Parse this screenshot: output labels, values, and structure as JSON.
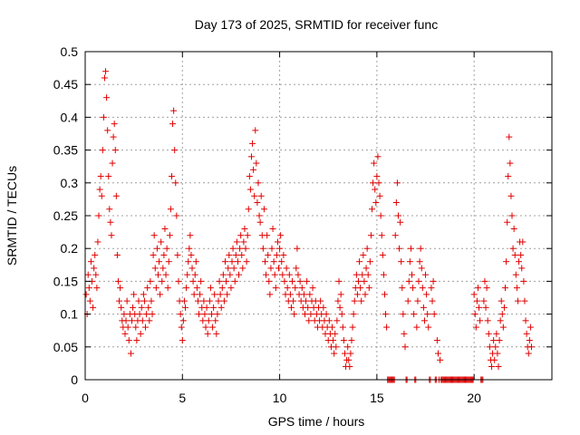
{
  "chart_data": {
    "type": "scatter",
    "title": "Day 173 of 2025, SRMTID for receiver func",
    "xlabel": "GPS time / hours",
    "ylabel": "SRMTID / TECUs",
    "xlim": [
      0,
      24
    ],
    "ylim": [
      0,
      0.5
    ],
    "xticks": [
      0,
      5,
      10,
      15,
      20
    ],
    "yticks": [
      0,
      0.05,
      0.1,
      0.15,
      0.2,
      0.25,
      0.3,
      0.35,
      0.4,
      0.45,
      0.5
    ],
    "xtick_labels": [
      "0",
      "5",
      "10",
      "15",
      "20"
    ],
    "ytick_labels": [
      "0",
      "0.05",
      "0.1",
      "0.15",
      "0.2",
      "0.25",
      "0.3",
      "0.35",
      "0.4",
      "0.45",
      "0.5"
    ],
    "grid": true,
    "marker": "+",
    "color": "#e00000",
    "x": [
      0.05,
      0.1,
      0.15,
      0.2,
      0.25,
      0.3,
      0.35,
      0.4,
      0.45,
      0.5,
      0.55,
      0.6,
      0.65,
      0.7,
      0.75,
      0.8,
      0.85,
      0.9,
      0.95,
      1.0,
      1.05,
      1.1,
      1.15,
      1.2,
      1.25,
      1.3,
      1.35,
      1.4,
      1.45,
      1.5,
      1.55,
      1.6,
      1.65,
      1.7,
      1.75,
      1.8,
      1.85,
      1.9,
      1.95,
      2.0,
      2.05,
      2.1,
      2.15,
      2.2,
      2.25,
      2.3,
      2.35,
      2.4,
      2.45,
      2.5,
      2.55,
      2.6,
      2.65,
      2.7,
      2.75,
      2.8,
      2.85,
      2.9,
      2.95,
      3.0,
      3.05,
      3.1,
      3.15,
      3.2,
      3.25,
      3.3,
      3.35,
      3.4,
      3.45,
      3.5,
      3.55,
      3.6,
      3.65,
      3.7,
      3.75,
      3.8,
      3.85,
      3.9,
      3.95,
      4.0,
      4.05,
      4.1,
      4.15,
      4.2,
      4.25,
      4.3,
      4.35,
      4.4,
      4.45,
      4.5,
      4.55,
      4.6,
      4.65,
      4.7,
      4.75,
      4.8,
      4.85,
      4.9,
      4.95,
      5.0,
      5.05,
      5.1,
      5.15,
      5.2,
      5.25,
      5.3,
      5.35,
      5.4,
      5.45,
      5.5,
      5.55,
      5.6,
      5.65,
      5.7,
      5.75,
      5.8,
      5.85,
      5.9,
      5.95,
      6.0,
      6.05,
      6.1,
      6.15,
      6.2,
      6.25,
      6.3,
      6.35,
      6.4,
      6.45,
      6.5,
      6.55,
      6.6,
      6.65,
      6.7,
      6.75,
      6.8,
      6.85,
      6.9,
      6.95,
      7.0,
      7.05,
      7.1,
      7.15,
      7.2,
      7.25,
      7.3,
      7.35,
      7.4,
      7.45,
      7.5,
      7.55,
      7.6,
      7.65,
      7.7,
      7.75,
      7.8,
      7.85,
      7.9,
      7.95,
      8.0,
      8.05,
      8.1,
      8.15,
      8.2,
      8.25,
      8.3,
      8.35,
      8.4,
      8.45,
      8.5,
      8.55,
      8.6,
      8.65,
      8.7,
      8.75,
      8.8,
      8.85,
      8.9,
      8.95,
      9.0,
      9.05,
      9.1,
      9.15,
      9.2,
      9.25,
      9.3,
      9.35,
      9.4,
      9.45,
      9.5,
      9.55,
      9.6,
      9.65,
      9.7,
      9.75,
      9.8,
      9.85,
      9.9,
      9.95,
      10.0,
      10.05,
      10.1,
      10.15,
      10.2,
      10.25,
      10.3,
      10.35,
      10.4,
      10.45,
      10.5,
      10.55,
      10.6,
      10.65,
      10.7,
      10.75,
      10.8,
      10.85,
      10.9,
      10.95,
      11.0,
      11.05,
      11.1,
      11.15,
      11.2,
      11.25,
      11.3,
      11.35,
      11.4,
      11.45,
      11.5,
      11.55,
      11.6,
      11.65,
      11.7,
      11.75,
      11.8,
      11.85,
      11.9,
      11.95,
      12.0,
      12.05,
      12.1,
      12.15,
      12.2,
      12.25,
      12.3,
      12.35,
      12.4,
      12.45,
      12.5,
      12.55,
      12.6,
      12.65,
      12.7,
      12.75,
      12.8,
      12.85,
      12.9,
      12.95,
      13.0,
      13.05,
      13.1,
      13.15,
      13.2,
      13.25,
      13.3,
      13.35,
      13.4,
      13.45,
      13.5,
      13.55,
      13.6,
      13.65,
      13.7,
      13.75,
      13.8,
      13.85,
      13.9,
      13.95,
      14.0,
      14.05,
      14.1,
      14.15,
      14.2,
      14.25,
      14.3,
      14.35,
      14.4,
      14.45,
      14.5,
      14.55,
      14.6,
      14.65,
      14.7,
      14.75,
      14.8,
      14.85,
      14.9,
      14.95,
      15.0,
      15.05,
      15.1,
      15.15,
      15.2,
      15.25,
      15.3,
      15.35,
      15.4,
      15.45,
      15.5,
      15.55,
      15.6,
      15.65,
      15.7,
      15.75,
      15.8,
      15.85,
      15.9,
      15.95,
      16.0,
      16.05,
      16.1,
      16.15,
      16.2,
      16.25,
      16.3,
      16.35,
      16.4,
      16.45,
      16.5,
      16.55,
      16.6,
      16.65,
      16.7,
      16.75,
      16.8,
      16.85,
      16.9,
      16.95,
      17.0,
      17.05,
      17.1,
      17.15,
      17.2,
      17.25,
      17.3,
      17.35,
      17.4,
      17.45,
      17.5,
      17.55,
      17.6,
      17.65,
      17.7,
      17.75,
      17.8,
      17.85,
      17.9,
      17.95,
      18.0,
      18.05,
      18.1,
      18.15,
      18.2,
      18.25,
      18.3,
      18.35,
      18.4,
      18.45,
      18.5,
      18.55,
      18.6,
      18.65,
      18.7,
      18.75,
      18.8,
      18.85,
      18.9,
      18.95,
      19.0,
      19.05,
      19.1,
      19.15,
      19.2,
      19.25,
      19.3,
      19.35,
      19.4,
      19.45,
      19.5,
      19.55,
      19.6,
      19.65,
      19.7,
      19.75,
      19.8,
      19.85,
      19.9,
      19.95,
      20.0,
      20.05,
      20.1,
      20.15,
      20.2,
      20.25,
      20.3,
      20.35,
      20.4,
      20.45,
      20.5,
      20.55,
      20.6,
      20.65,
      20.7,
      20.75,
      20.8,
      20.85,
      20.9,
      20.95,
      21.0,
      21.05,
      21.1,
      21.15,
      21.2,
      21.25,
      21.3,
      21.35,
      21.4,
      21.45,
      21.5,
      21.55,
      21.6,
      21.65,
      21.7,
      21.75,
      21.8,
      21.85,
      21.9,
      21.95,
      22.0,
      22.05,
      22.1,
      22.15,
      22.2,
      22.25,
      22.3,
      22.35,
      22.4,
      22.45,
      22.5,
      22.55,
      22.6,
      22.65,
      22.7,
      22.75,
      22.8,
      22.85,
      22.9,
      22.95
    ],
    "y": [
      0.13,
      0.1,
      0.16,
      0.14,
      0.12,
      0.18,
      0.15,
      0.11,
      0.17,
      0.19,
      0.16,
      0.14,
      0.21,
      0.25,
      0.29,
      0.31,
      0.28,
      0.35,
      0.4,
      0.46,
      0.47,
      0.43,
      0.38,
      0.31,
      0.26,
      0.24,
      0.22,
      0.33,
      0.37,
      0.39,
      0.35,
      0.28,
      0.19,
      0.15,
      0.12,
      0.14,
      0.11,
      0.09,
      0.08,
      0.1,
      0.07,
      0.09,
      0.12,
      0.08,
      0.06,
      0.1,
      0.04,
      0.09,
      0.11,
      0.13,
      0.1,
      0.08,
      0.06,
      0.09,
      0.12,
      0.1,
      0.07,
      0.11,
      0.09,
      0.13,
      0.12,
      0.08,
      0.1,
      0.14,
      0.11,
      0.09,
      0.15,
      0.12,
      0.1,
      0.19,
      0.22,
      0.17,
      0.14,
      0.2,
      0.16,
      0.18,
      0.13,
      0.21,
      0.15,
      0.17,
      0.19,
      0.23,
      0.16,
      0.2,
      0.14,
      0.18,
      0.22,
      0.26,
      0.31,
      0.39,
      0.41,
      0.35,
      0.3,
      0.25,
      0.19,
      0.15,
      0.12,
      0.1,
      0.08,
      0.06,
      0.09,
      0.12,
      0.11,
      0.14,
      0.16,
      0.18,
      0.2,
      0.22,
      0.19,
      0.17,
      0.15,
      0.13,
      0.16,
      0.18,
      0.14,
      0.12,
      0.1,
      0.13,
      0.15,
      0.11,
      0.09,
      0.12,
      0.1,
      0.08,
      0.11,
      0.07,
      0.09,
      0.12,
      0.14,
      0.1,
      0.08,
      0.11,
      0.13,
      0.09,
      0.07,
      0.1,
      0.12,
      0.15,
      0.13,
      0.11,
      0.14,
      0.16,
      0.12,
      0.18,
      0.15,
      0.13,
      0.17,
      0.19,
      0.16,
      0.14,
      0.18,
      0.2,
      0.17,
      0.15,
      0.19,
      0.21,
      0.18,
      0.16,
      0.2,
      0.22,
      0.19,
      0.17,
      0.21,
      0.23,
      0.2,
      0.18,
      0.22,
      0.26,
      0.31,
      0.29,
      0.34,
      0.36,
      0.32,
      0.28,
      0.38,
      0.33,
      0.27,
      0.3,
      0.25,
      0.24,
      0.28,
      0.22,
      0.2,
      0.26,
      0.18,
      0.16,
      0.22,
      0.19,
      0.15,
      0.13,
      0.17,
      0.2,
      0.23,
      0.18,
      0.16,
      0.14,
      0.19,
      0.21,
      0.17,
      0.2,
      0.22,
      0.18,
      0.16,
      0.19,
      0.15,
      0.13,
      0.17,
      0.14,
      0.12,
      0.16,
      0.13,
      0.11,
      0.15,
      0.12,
      0.1,
      0.14,
      0.17,
      0.2,
      0.16,
      0.13,
      0.15,
      0.12,
      0.14,
      0.11,
      0.13,
      0.1,
      0.12,
      0.15,
      0.11,
      0.09,
      0.13,
      0.1,
      0.12,
      0.14,
      0.11,
      0.09,
      0.12,
      0.1,
      0.08,
      0.11,
      0.09,
      0.12,
      0.1,
      0.08,
      0.11,
      0.09,
      0.07,
      0.1,
      0.08,
      0.06,
      0.09,
      0.07,
      0.05,
      0.08,
      0.06,
      0.04,
      0.07,
      0.05,
      0.09,
      0.12,
      0.15,
      0.11,
      0.13,
      0.1,
      0.08,
      0.06,
      0.04,
      0.02,
      0.03,
      0.05,
      0.03,
      0.02,
      0.04,
      0.06,
      0.08,
      0.1,
      0.12,
      0.14,
      0.16,
      0.13,
      0.15,
      0.18,
      0.14,
      0.12,
      0.16,
      0.19,
      0.15,
      0.13,
      0.17,
      0.2,
      0.16,
      0.14,
      0.18,
      0.22,
      0.26,
      0.3,
      0.33,
      0.29,
      0.27,
      0.31,
      0.34,
      0.3,
      0.28,
      0.25,
      0.22,
      0.19,
      0.16,
      0.13,
      0.1,
      0.08,
      0.0,
      0.0,
      0.0,
      0.0,
      0.0,
      0.0,
      0.0,
      0.0,
      0.22,
      0.27,
      0.3,
      0.25,
      0.2,
      0.24,
      0.18,
      0.14,
      0.1,
      0.07,
      0.05,
      0.0,
      0.0,
      0.12,
      0.15,
      0.18,
      0.2,
      0.16,
      0.14,
      0.1,
      0.0,
      0.0,
      0.08,
      0.12,
      0.15,
      0.18,
      0.2,
      0.17,
      0.14,
      0.11,
      0.09,
      0.16,
      0.13,
      0.1,
      0.08,
      0.0,
      0.0,
      0.14,
      0.12,
      0.15,
      0.1,
      0.0,
      0.0,
      0.06,
      0.04,
      0.0,
      0.03,
      0.0,
      0.0,
      0.0,
      0.0,
      0.0,
      0.0,
      0.0,
      0.0,
      0.0,
      0.0,
      0.0,
      0.0,
      0.0,
      0.0,
      0.0,
      0.0,
      0.0,
      0.0,
      0.0,
      0.0,
      0.0,
      0.0,
      0.0,
      0.0,
      0.0,
      0.0,
      0.0,
      0.0,
      0.0,
      0.0,
      0.0,
      0.0,
      0.0,
      0.0,
      0.13,
      0.1,
      0.08,
      0.12,
      0.14,
      0.11,
      0.09,
      0.0,
      0.0,
      0.0,
      0.12,
      0.15,
      0.11,
      0.14,
      0.09,
      0.07,
      0.05,
      0.03,
      0.02,
      0.04,
      0.06,
      0.03,
      0.05,
      0.07,
      0.04,
      0.02,
      0.06,
      0.09,
      0.12,
      0.1,
      0.08,
      0.11,
      0.14,
      0.18,
      0.24,
      0.31,
      0.37,
      0.33,
      0.28,
      0.25,
      0.2,
      0.23,
      0.19,
      0.16,
      0.14,
      0.12,
      0.18,
      0.21,
      0.19,
      0.17,
      0.21,
      0.15,
      0.12,
      0.09,
      0.07,
      0.05,
      0.04,
      0.06,
      0.08,
      0.05
    ]
  }
}
